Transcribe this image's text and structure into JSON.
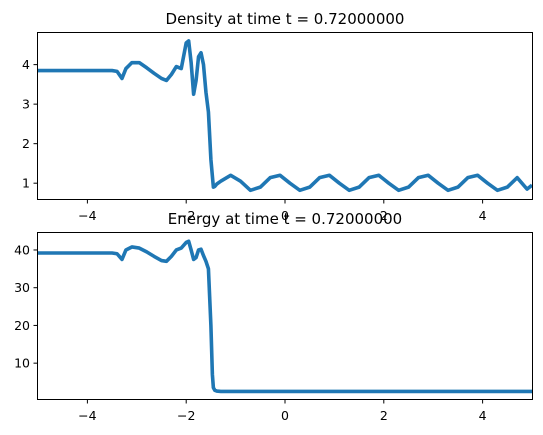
{
  "chart_data": [
    {
      "type": "line",
      "title": "Density at time t =     0.72000000",
      "xlabel": "",
      "ylabel": "",
      "xlim": [
        -5,
        5
      ],
      "ylim": [
        0.6,
        4.8
      ],
      "xticks": [
        -4,
        -2,
        0,
        2,
        4
      ],
      "yticks": [
        1,
        2,
        3,
        4
      ],
      "xtick_labels": [
        "−4",
        "−2",
        "0",
        "2",
        "4"
      ],
      "ytick_labels": [
        "1",
        "2",
        "3",
        "4"
      ],
      "grid": false,
      "color": "#1f77b4",
      "series": [
        {
          "x": [
            -5,
            -4.2,
            -3.5,
            -3.4,
            -3.3,
            -3.22,
            -3.1,
            -2.95,
            -2.8,
            -2.65,
            -2.5,
            -2.4,
            -2.3,
            -2.2,
            -2.1,
            -2.0,
            -1.95,
            -1.9,
            -1.85,
            -1.8,
            -1.75,
            -1.7,
            -1.65,
            -1.6,
            -1.55,
            -1.5,
            -1.45,
            -1.42,
            -1.38,
            -1.3,
            -1.1,
            -0.9,
            -0.7,
            -0.5,
            -0.3,
            -0.1,
            0.1,
            0.3,
            0.5,
            0.7,
            0.9,
            1.1,
            1.3,
            1.5,
            1.7,
            1.9,
            2.1,
            2.3,
            2.5,
            2.7,
            2.9,
            3.1,
            3.3,
            3.5,
            3.7,
            3.9,
            4.1,
            4.3,
            4.5,
            4.7,
            4.9,
            5.0
          ],
          "y": [
            3.85,
            3.85,
            3.85,
            3.83,
            3.65,
            3.9,
            4.05,
            4.05,
            3.92,
            3.78,
            3.65,
            3.6,
            3.75,
            3.95,
            3.9,
            4.55,
            4.6,
            4.05,
            3.25,
            3.6,
            4.2,
            4.3,
            4.0,
            3.3,
            2.8,
            1.6,
            0.9,
            0.92,
            0.98,
            1.05,
            1.2,
            1.05,
            0.82,
            0.9,
            1.14,
            1.2,
            1.0,
            0.82,
            0.9,
            1.14,
            1.2,
            1.0,
            0.82,
            0.9,
            1.14,
            1.2,
            1.0,
            0.82,
            0.9,
            1.14,
            1.2,
            1.0,
            0.82,
            0.9,
            1.14,
            1.2,
            1.0,
            0.82,
            0.9,
            1.14,
            0.85,
            0.95
          ]
        }
      ]
    },
    {
      "type": "line",
      "title": "Energy at time t =     0.72000000",
      "xlabel": "",
      "ylabel": "",
      "xlim": [
        -5,
        5
      ],
      "ylim": [
        0.5,
        44.5
      ],
      "xticks": [
        -4,
        -2,
        0,
        2,
        4
      ],
      "yticks": [
        10,
        20,
        30,
        40
      ],
      "xtick_labels": [
        "−4",
        "−2",
        "0",
        "2",
        "4"
      ],
      "ytick_labels": [
        "10",
        "20",
        "30",
        "40"
      ],
      "grid": false,
      "color": "#1f77b4",
      "series": [
        {
          "x": [
            -5,
            -4.2,
            -3.5,
            -3.4,
            -3.3,
            -3.22,
            -3.1,
            -2.95,
            -2.8,
            -2.65,
            -2.5,
            -2.4,
            -2.3,
            -2.2,
            -2.1,
            -2.0,
            -1.95,
            -1.9,
            -1.85,
            -1.8,
            -1.75,
            -1.7,
            -1.65,
            -1.6,
            -1.55,
            -1.5,
            -1.47,
            -1.45,
            -1.42,
            -1.38,
            -1.3,
            -1.0,
            0,
            1,
            2,
            3,
            4,
            5.0
          ],
          "y": [
            39.2,
            39.2,
            39.2,
            39.0,
            37.5,
            40.0,
            40.8,
            40.5,
            39.5,
            38.3,
            37.2,
            37.0,
            38.3,
            40.0,
            40.5,
            42.0,
            42.3,
            40.0,
            37.5,
            38.0,
            40.0,
            40.2,
            38.5,
            37.0,
            35.0,
            20.0,
            7.0,
            3.5,
            2.8,
            2.6,
            2.5,
            2.5,
            2.5,
            2.5,
            2.5,
            2.5,
            2.5,
            2.5
          ]
        }
      ]
    }
  ]
}
